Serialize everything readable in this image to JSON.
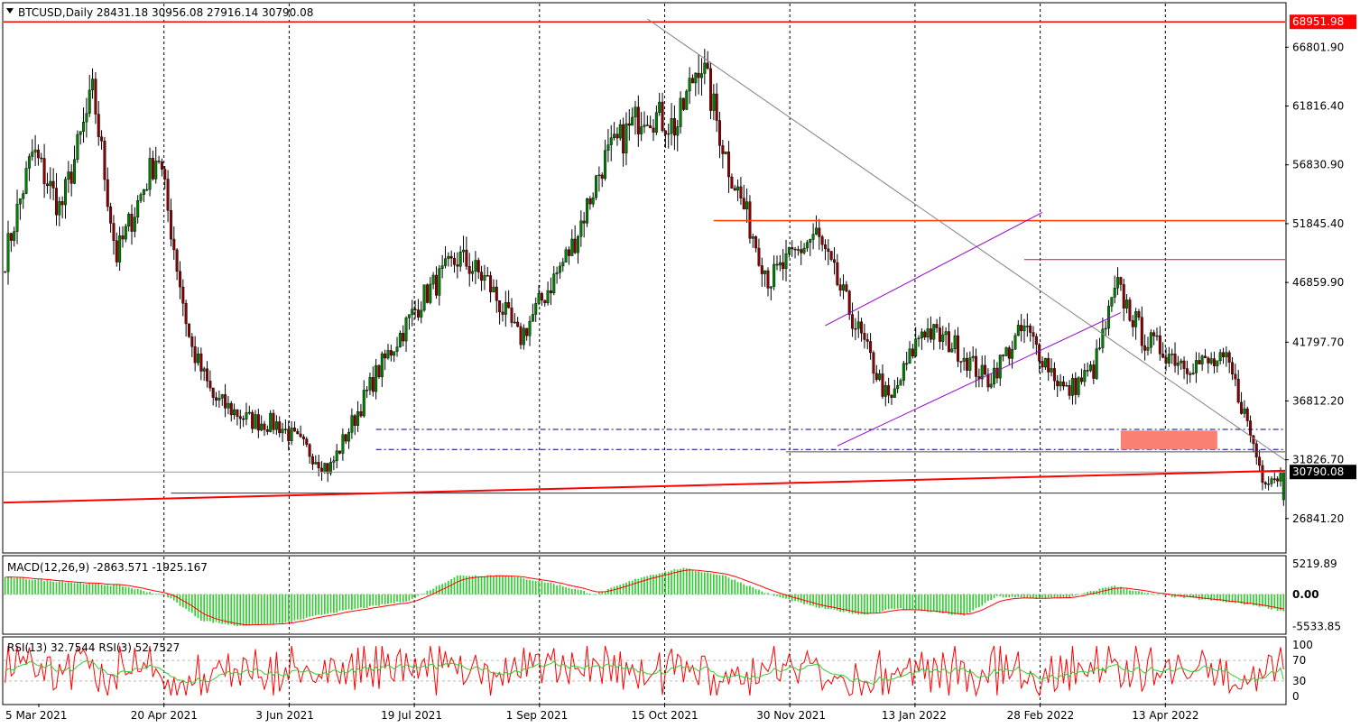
{
  "chart_data": {
    "type": "candlestick",
    "header": "BTCUSD,Daily  28431.18 30956.08 27916.14 30790.08",
    "symbol": "BTCUSD",
    "timeframe": "Daily",
    "ohlc_last": {
      "open": 28431.18,
      "high": 30956.08,
      "low": 27916.14,
      "close": 30790.08
    },
    "ylim": [
      24000,
      70500
    ],
    "price_ticks": [
      "66801.90",
      "61816.40",
      "56830.90",
      "51845.40",
      "46859.90",
      "41797.70",
      "36812.20",
      "31826.70",
      "26841.20"
    ],
    "price_tick_values": [
      66801.9,
      61816.4,
      56830.9,
      51845.4,
      46859.9,
      41797.7,
      36812.2,
      31826.7,
      26841.2
    ],
    "date_labels": [
      "5 Mar 2021",
      "20 Apr 2021",
      "3 Jun 2021",
      "19 Jul 2021",
      "1 Sep 2021",
      "15 Oct 2021",
      "30 Nov 2021",
      "13 Jan 2022",
      "28 Feb 2022",
      "13 Apr 2022"
    ],
    "bar_count": 425,
    "grid": true,
    "annotations": {
      "high_level": "68951.98",
      "high_level_value": 68951.98,
      "last_price": "30790.08",
      "last_price_value": 30790.08,
      "resistance_level": 52100,
      "range_top": 48800,
      "dashed_levels": [
        34400,
        32700
      ],
      "support_gray": [
        32500,
        29000
      ],
      "zone": {
        "top": 34300,
        "bottom": 32700
      }
    },
    "anchors": [
      [
        0,
        49000
      ],
      [
        12,
        58000
      ],
      [
        24,
        53000
      ],
      [
        38,
        63000
      ],
      [
        48,
        49000
      ],
      [
        66,
        58000
      ],
      [
        80,
        41500
      ],
      [
        90,
        37000
      ],
      [
        105,
        35200
      ],
      [
        118,
        34800
      ],
      [
        140,
        31000
      ],
      [
        160,
        39000
      ],
      [
        180,
        45500
      ],
      [
        196,
        49000
      ],
      [
        208,
        47000
      ],
      [
        222,
        42000
      ],
      [
        245,
        50000
      ],
      [
        258,
        57000
      ],
      [
        276,
        61500
      ],
      [
        290,
        60000
      ],
      [
        300,
        66000
      ],
      [
        312,
        57000
      ],
      [
        330,
        47000
      ],
      [
        350,
        51000
      ],
      [
        370,
        42000
      ],
      [
        382,
        36500
      ],
      [
        396,
        43000
      ],
      [
        410,
        41500
      ],
      [
        424,
        38500
      ],
      [
        440,
        43000
      ],
      [
        458,
        37500
      ],
      [
        470,
        39500
      ],
      [
        480,
        46500
      ],
      [
        492,
        42000
      ],
      [
        510,
        40000
      ],
      [
        528,
        40000
      ],
      [
        535,
        35800
      ],
      [
        543,
        30400
      ],
      [
        552,
        30500
      ]
    ],
    "macd": {
      "label": "MACD(12,26,9) -2863.571 -1925.167",
      "ticks": [
        "5219.89",
        "0.00",
        "-5533.85"
      ],
      "tick_values": [
        5219.89,
        0,
        -5533.85
      ],
      "ylim": [
        -6700,
        6500
      ],
      "anchors": [
        [
          0,
          3000
        ],
        [
          30,
          2000
        ],
        [
          50,
          1500
        ],
        [
          70,
          -300
        ],
        [
          85,
          -4500
        ],
        [
          100,
          -5400
        ],
        [
          120,
          -5000
        ],
        [
          140,
          -3200
        ],
        [
          160,
          -2000
        ],
        [
          175,
          -1000
        ],
        [
          195,
          3200
        ],
        [
          215,
          3300
        ],
        [
          235,
          2000
        ],
        [
          255,
          0
        ],
        [
          275,
          3000
        ],
        [
          292,
          4500
        ],
        [
          310,
          3300
        ],
        [
          330,
          0
        ],
        [
          350,
          -2200
        ],
        [
          370,
          -3500
        ],
        [
          385,
          -2400
        ],
        [
          400,
          -3000
        ],
        [
          414,
          -3700
        ],
        [
          428,
          -400
        ],
        [
          445,
          -700
        ],
        [
          460,
          -500
        ],
        [
          478,
          1500
        ],
        [
          495,
          0
        ],
        [
          520,
          -1000
        ],
        [
          540,
          -1900
        ],
        [
          552,
          -2900
        ]
      ]
    },
    "rsi": {
      "label": "RSI(13) 32.7544  RSI(3) 52.7527",
      "ticks": [
        "100",
        "70",
        "30",
        "0"
      ],
      "tick_values": [
        100,
        70,
        30,
        0
      ]
    }
  }
}
